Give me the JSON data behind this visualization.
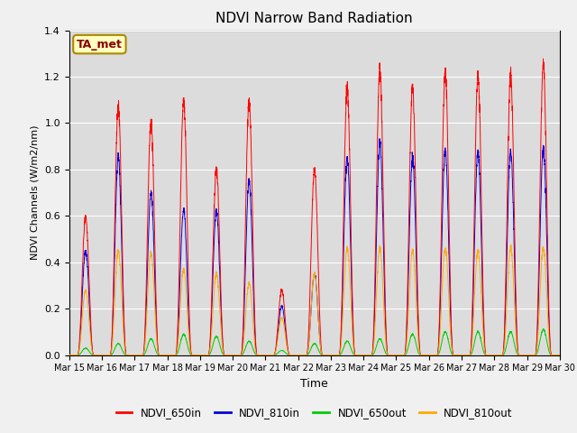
{
  "title": "NDVI Narrow Band Radiation",
  "xlabel": "Time",
  "ylabel": "NDVI Channels (W/m2/nm)",
  "annotation": "TA_met",
  "ylim": [
    0,
    1.4
  ],
  "colors": {
    "NDVI_650in": "#ff0000",
    "NDVI_810in": "#0000dd",
    "NDVI_650out": "#00cc00",
    "NDVI_810out": "#ffaa00"
  },
  "legend_labels": [
    "NDVI_650in",
    "NDVI_810in",
    "NDVI_650out",
    "NDVI_810out"
  ],
  "x_tick_labels": [
    "Mar 15",
    "Mar 16",
    "Mar 17",
    "Mar 18",
    "Mar 19",
    "Mar 20",
    "Mar 21",
    "Mar 22",
    "Mar 23",
    "Mar 24",
    "Mar 25",
    "Mar 26",
    "Mar 27",
    "Mar 28",
    "Mar 29",
    "Mar 30"
  ],
  "background_color": "#dcdcdc",
  "plot_bg_color": "#dcdcdc",
  "title_fontsize": 11,
  "grid_color": "#ffffff",
  "annotation_bg": "#ffffc0",
  "annotation_border": "#aa8800",
  "annotation_text_color": "#880000",
  "peaks": [
    [
      0,
      0.6,
      0.45,
      0.03,
      0.28,
      0.45,
      0.35
    ],
    [
      1,
      1.07,
      0.85,
      0.05,
      0.45,
      0.45,
      0.35
    ],
    [
      2,
      1.01,
      0.7,
      0.07,
      0.44,
      0.45,
      0.35
    ],
    [
      3,
      1.1,
      0.63,
      0.09,
      0.37,
      0.45,
      0.35
    ],
    [
      4,
      0.8,
      0.62,
      0.08,
      0.35,
      0.45,
      0.35
    ],
    [
      5,
      1.1,
      0.75,
      0.06,
      0.31,
      0.45,
      0.35
    ],
    [
      6,
      0.28,
      0.21,
      0.02,
      0.16,
      0.45,
      0.35
    ],
    [
      7,
      0.8,
      0.35,
      0.05,
      0.35,
      0.45,
      0.35
    ],
    [
      8,
      1.15,
      0.85,
      0.06,
      0.46,
      0.45,
      0.35
    ],
    [
      9,
      1.23,
      0.91,
      0.07,
      0.46,
      0.45,
      0.35
    ],
    [
      10,
      1.15,
      0.85,
      0.09,
      0.45,
      0.45,
      0.35
    ],
    [
      11,
      1.22,
      0.88,
      0.1,
      0.46,
      0.45,
      0.35
    ],
    [
      12,
      1.2,
      0.88,
      0.1,
      0.45,
      0.45,
      0.35
    ],
    [
      13,
      1.21,
      0.88,
      0.1,
      0.46,
      0.45,
      0.35
    ],
    [
      14,
      1.25,
      0.89,
      0.11,
      0.46,
      0.45,
      0.35
    ]
  ]
}
